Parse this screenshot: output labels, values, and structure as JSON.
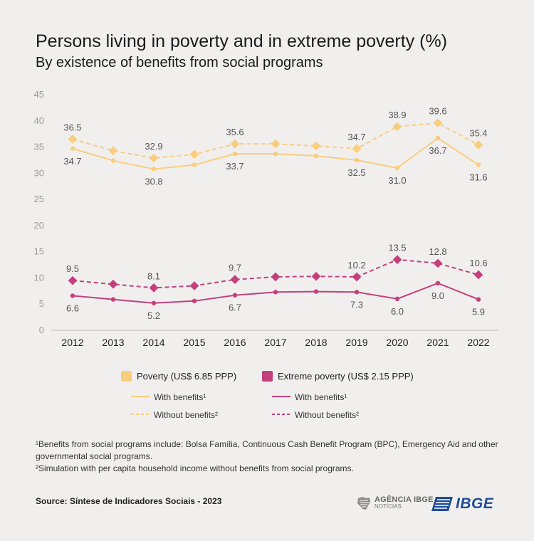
{
  "title": "Persons living in poverty and in extreme poverty (%)",
  "subtitle": "By existence of benefits from social programs",
  "chart_data": {
    "type": "line",
    "x": [
      "2012",
      "2013",
      "2014",
      "2015",
      "2016",
      "2017",
      "2018",
      "2019",
      "2020",
      "2021",
      "2022"
    ],
    "y_ticks": [
      0,
      5,
      10,
      15,
      20,
      25,
      30,
      35,
      40,
      45
    ],
    "ylim": [
      0,
      45
    ],
    "grid": false,
    "series": [
      {
        "name": "With benefits¹",
        "group": "Poverty (US$ 6.85 PPP)",
        "style": "solid",
        "color": "#f9cd7e",
        "values": [
          34.7,
          32.4,
          30.8,
          31.6,
          33.7,
          33.7,
          33.3,
          32.5,
          31.0,
          36.7,
          31.6
        ],
        "labels": [
          "34.7",
          "",
          "30.8",
          "",
          "33.7",
          "",
          "",
          "32.5",
          "31.0",
          "36.7",
          "31.6"
        ]
      },
      {
        "name": "Without benefits²",
        "group": "Poverty (US$ 6.85 PPP)",
        "style": "dashed",
        "color": "#f9cd7e",
        "values": [
          36.5,
          34.3,
          32.9,
          33.6,
          35.6,
          35.6,
          35.2,
          34.7,
          38.9,
          39.6,
          35.4
        ],
        "labels": [
          "36.5",
          "",
          "32.9",
          "",
          "35.6",
          "",
          "",
          "34.7",
          "38.9",
          "39.6",
          "35.4"
        ]
      },
      {
        "name": "With benefits¹",
        "group": "Extreme poverty (US$ 2.15 PPP)",
        "style": "solid",
        "color": "#c4407d",
        "values": [
          6.6,
          5.9,
          5.2,
          5.6,
          6.7,
          7.3,
          7.4,
          7.3,
          6.0,
          9.0,
          5.9
        ],
        "labels": [
          "6.6",
          "",
          "5.2",
          "",
          "6.7",
          "",
          "",
          "7.3",
          "6.0",
          "9.0",
          "5.9"
        ]
      },
      {
        "name": "Without benefits²",
        "group": "Extreme poverty (US$ 2.15 PPP)",
        "style": "dashed",
        "color": "#c4407d",
        "values": [
          9.5,
          8.8,
          8.1,
          8.5,
          9.7,
          10.2,
          10.3,
          10.2,
          13.5,
          12.8,
          10.6
        ],
        "labels": [
          "9.5",
          "",
          "8.1",
          "",
          "9.7",
          "",
          "",
          "10.2",
          "13.5",
          "12.8",
          "10.6"
        ]
      }
    ],
    "legend": {
      "placement": "bottom",
      "groups": [
        {
          "label": "Poverty (US$ 6.85 PPP)",
          "color": "#f9cd7e",
          "items": [
            {
              "label": "With benefits¹",
              "style": "solid"
            },
            {
              "label": "Without benefits²",
              "style": "dashed"
            }
          ]
        },
        {
          "label": "Extreme poverty (US$ 2.15 PPP)",
          "color": "#c4407d",
          "items": [
            {
              "label": "With benefits¹",
              "style": "solid"
            },
            {
              "label": "Without benefits²",
              "style": "dashed"
            }
          ]
        }
      ]
    }
  },
  "footnotes": [
    "¹Benefits from social programs include: Bolsa Família, Continuous Cash Benefit Program (BPC), Emergency Aid and other governmental social programs.",
    "²Simulation with per capita household income without benefits from social programs."
  ],
  "source": "Source: Síntese de Indicadores Sociais - 2023",
  "logos": {
    "agencia_line1": "AGÊNCIA IBGE",
    "agencia_line2": "NOTÍCIAS",
    "ibge": "IBGE"
  },
  "colors": {
    "poverty": "#f9cd7e",
    "extreme": "#c4407d",
    "axis_text": "#9a9a9a",
    "label_text": "#555555",
    "ibge_blue": "#1f4e96"
  }
}
